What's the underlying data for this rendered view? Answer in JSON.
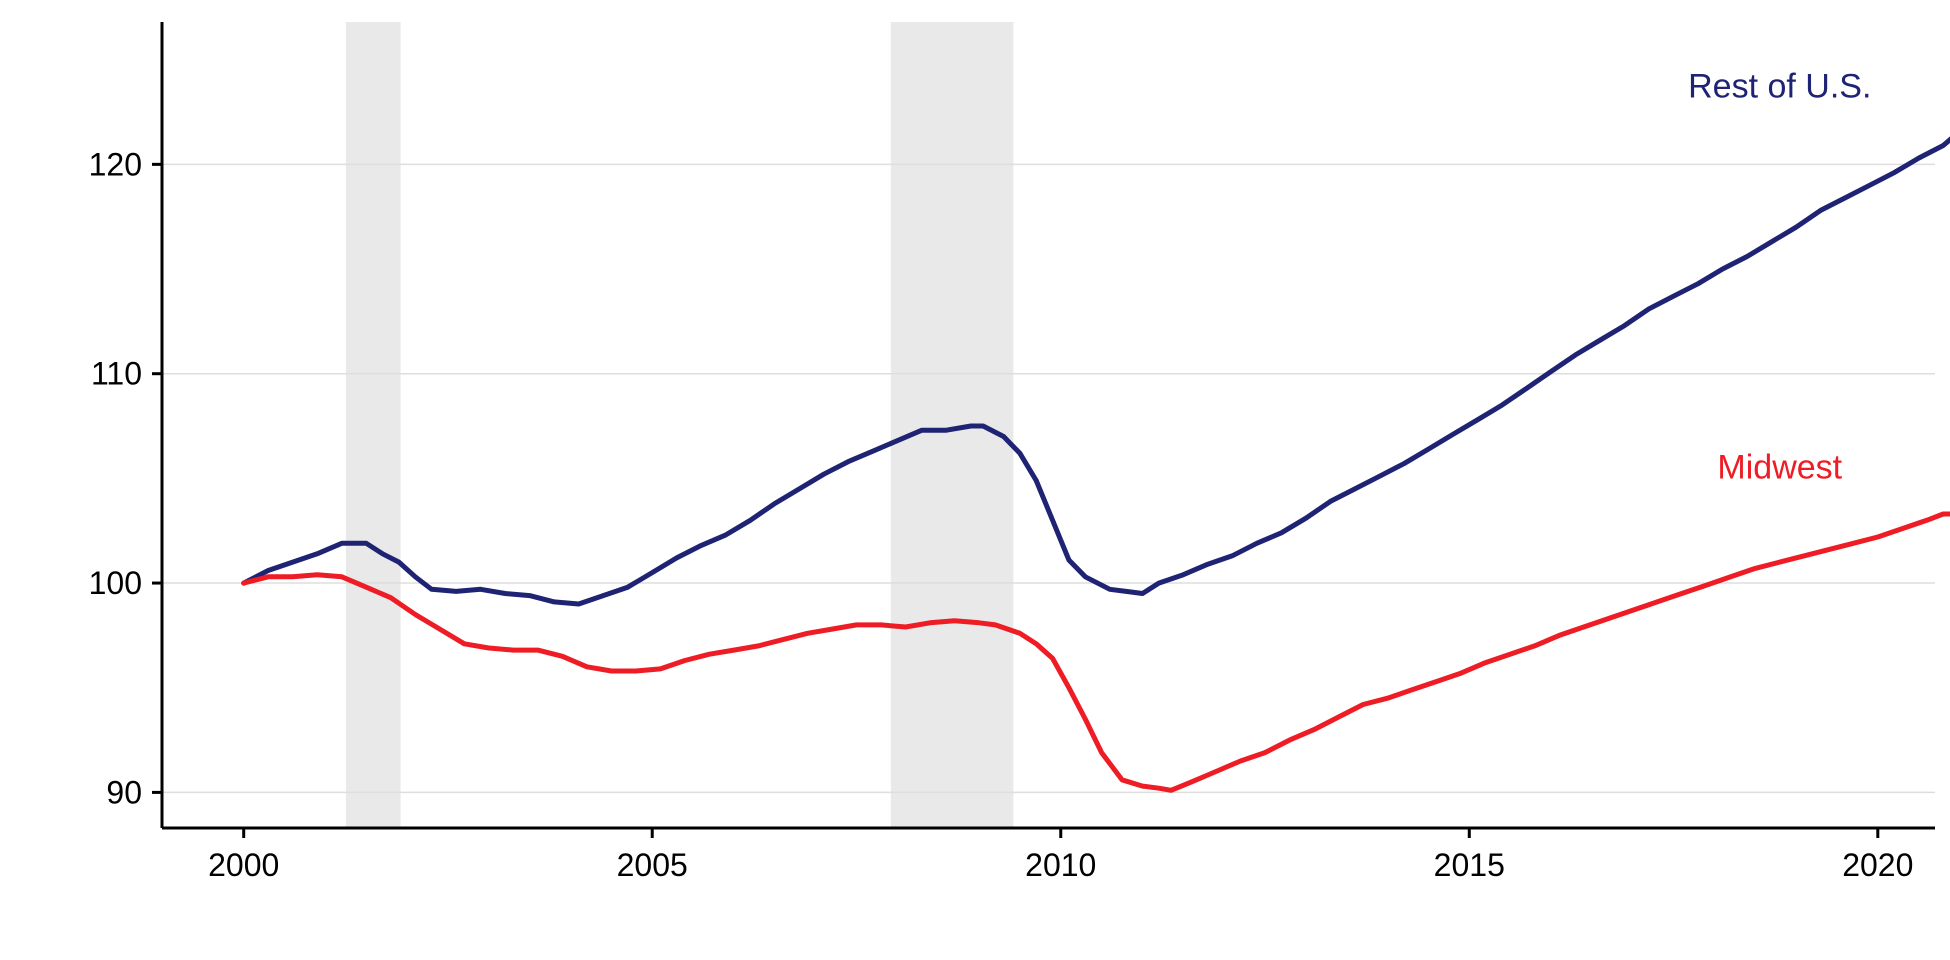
{
  "chart_data": {
    "type": "line",
    "title": "",
    "xlabel": "",
    "ylabel": "",
    "xlim": [
      1999.0,
      2020.7
    ],
    "ylim": [
      88.3,
      126.8
    ],
    "grid": "horizontal",
    "x_ticks": [
      {
        "value": 2000,
        "label": "2000"
      },
      {
        "value": 2005,
        "label": "2005"
      },
      {
        "value": 2010,
        "label": "2010"
      },
      {
        "value": 2015,
        "label": "2015"
      },
      {
        "value": 2020,
        "label": "2020"
      }
    ],
    "y_ticks": [
      {
        "value": 90,
        "label": "90"
      },
      {
        "value": 100,
        "label": "100"
      },
      {
        "value": 110,
        "label": "110"
      },
      {
        "value": 120,
        "label": "120"
      }
    ],
    "shaded_periods": [
      {
        "start": 2001.25,
        "end": 2001.92
      },
      {
        "start": 2007.92,
        "end": 2009.42
      }
    ],
    "series": [
      {
        "name": "Rest of U.S.",
        "color": "#1f2373",
        "label_anchor": {
          "x": 2018.8,
          "y": 123.2
        },
        "points": [
          [
            2000.0,
            100.0
          ],
          [
            2000.3,
            100.6
          ],
          [
            2000.6,
            101.0
          ],
          [
            2000.9,
            101.4
          ],
          [
            2001.2,
            101.9
          ],
          [
            2001.5,
            101.9
          ],
          [
            2001.7,
            101.4
          ],
          [
            2001.9,
            101.0
          ],
          [
            2002.1,
            100.3
          ],
          [
            2002.3,
            99.7
          ],
          [
            2002.6,
            99.6
          ],
          [
            2002.9,
            99.7
          ],
          [
            2003.2,
            99.5
          ],
          [
            2003.5,
            99.4
          ],
          [
            2003.8,
            99.1
          ],
          [
            2004.1,
            99.0
          ],
          [
            2004.4,
            99.4
          ],
          [
            2004.7,
            99.8
          ],
          [
            2005.0,
            100.5
          ],
          [
            2005.3,
            101.2
          ],
          [
            2005.6,
            101.8
          ],
          [
            2005.9,
            102.3
          ],
          [
            2006.2,
            103.0
          ],
          [
            2006.5,
            103.8
          ],
          [
            2006.8,
            104.5
          ],
          [
            2007.1,
            105.2
          ],
          [
            2007.4,
            105.8
          ],
          [
            2007.7,
            106.3
          ],
          [
            2008.0,
            106.8
          ],
          [
            2008.3,
            107.3
          ],
          [
            2008.6,
            107.3
          ],
          [
            2008.9,
            107.5
          ],
          [
            2009.05,
            107.5
          ],
          [
            2009.3,
            107.0
          ],
          [
            2009.5,
            106.2
          ],
          [
            2009.7,
            104.9
          ],
          [
            2009.9,
            103.0
          ],
          [
            2010.1,
            101.1
          ],
          [
            2010.3,
            100.3
          ],
          [
            2010.6,
            99.7
          ],
          [
            2010.8,
            99.6
          ],
          [
            2011.0,
            99.5
          ],
          [
            2011.2,
            100.0
          ],
          [
            2011.5,
            100.4
          ],
          [
            2011.8,
            100.9
          ],
          [
            2012.1,
            101.3
          ],
          [
            2012.4,
            101.9
          ],
          [
            2012.7,
            102.4
          ],
          [
            2013.0,
            103.1
          ],
          [
            2013.3,
            103.9
          ],
          [
            2013.6,
            104.5
          ],
          [
            2013.9,
            105.1
          ],
          [
            2014.2,
            105.7
          ],
          [
            2014.5,
            106.4
          ],
          [
            2014.8,
            107.1
          ],
          [
            2015.1,
            107.8
          ],
          [
            2015.4,
            108.5
          ],
          [
            2015.7,
            109.3
          ],
          [
            2016.0,
            110.1
          ],
          [
            2016.3,
            110.9
          ],
          [
            2016.6,
            111.6
          ],
          [
            2016.9,
            112.3
          ],
          [
            2017.2,
            113.1
          ],
          [
            2017.5,
            113.7
          ],
          [
            2017.8,
            114.3
          ],
          [
            2018.1,
            115.0
          ],
          [
            2018.4,
            115.6
          ],
          [
            2018.7,
            116.3
          ],
          [
            2019.0,
            117.0
          ],
          [
            2019.3,
            117.8
          ],
          [
            2019.6,
            118.4
          ],
          [
            2019.9,
            119.0
          ],
          [
            2020.2,
            119.6
          ],
          [
            2020.5,
            120.3
          ],
          [
            2020.8,
            120.9
          ],
          [
            2020.95,
            121.4
          ]
        ]
      },
      {
        "name": "Midwest",
        "color": "#ee1c25",
        "label_anchor": {
          "x": 2018.8,
          "y": 105.0
        },
        "points": [
          [
            2000.0,
            100.0
          ],
          [
            2000.3,
            100.3
          ],
          [
            2000.6,
            100.3
          ],
          [
            2000.9,
            100.4
          ],
          [
            2001.2,
            100.3
          ],
          [
            2001.5,
            99.8
          ],
          [
            2001.8,
            99.3
          ],
          [
            2002.1,
            98.5
          ],
          [
            2002.4,
            97.8
          ],
          [
            2002.7,
            97.1
          ],
          [
            2003.0,
            96.9
          ],
          [
            2003.3,
            96.8
          ],
          [
            2003.6,
            96.8
          ],
          [
            2003.9,
            96.5
          ],
          [
            2004.2,
            96.0
          ],
          [
            2004.5,
            95.8
          ],
          [
            2004.8,
            95.8
          ],
          [
            2005.1,
            95.9
          ],
          [
            2005.4,
            96.3
          ],
          [
            2005.7,
            96.6
          ],
          [
            2006.0,
            96.8
          ],
          [
            2006.3,
            97.0
          ],
          [
            2006.6,
            97.3
          ],
          [
            2006.9,
            97.6
          ],
          [
            2007.2,
            97.8
          ],
          [
            2007.5,
            98.0
          ],
          [
            2007.8,
            98.0
          ],
          [
            2008.1,
            97.9
          ],
          [
            2008.4,
            98.1
          ],
          [
            2008.7,
            98.2
          ],
          [
            2009.0,
            98.1
          ],
          [
            2009.2,
            98.0
          ],
          [
            2009.5,
            97.6
          ],
          [
            2009.7,
            97.1
          ],
          [
            2009.9,
            96.4
          ],
          [
            2010.1,
            95.0
          ],
          [
            2010.3,
            93.5
          ],
          [
            2010.5,
            91.9
          ],
          [
            2010.75,
            90.6
          ],
          [
            2011.0,
            90.3
          ],
          [
            2011.2,
            90.2
          ],
          [
            2011.35,
            90.1
          ],
          [
            2011.6,
            90.5
          ],
          [
            2011.9,
            91.0
          ],
          [
            2012.2,
            91.5
          ],
          [
            2012.5,
            91.9
          ],
          [
            2012.8,
            92.5
          ],
          [
            2013.1,
            93.0
          ],
          [
            2013.4,
            93.6
          ],
          [
            2013.7,
            94.2
          ],
          [
            2014.0,
            94.5
          ],
          [
            2014.3,
            94.9
          ],
          [
            2014.6,
            95.3
          ],
          [
            2014.9,
            95.7
          ],
          [
            2015.2,
            96.2
          ],
          [
            2015.5,
            96.6
          ],
          [
            2015.8,
            97.0
          ],
          [
            2016.1,
            97.5
          ],
          [
            2016.4,
            97.9
          ],
          [
            2016.7,
            98.3
          ],
          [
            2017.0,
            98.7
          ],
          [
            2017.3,
            99.1
          ],
          [
            2017.6,
            99.5
          ],
          [
            2017.9,
            99.9
          ],
          [
            2018.2,
            100.3
          ],
          [
            2018.5,
            100.7
          ],
          [
            2018.8,
            101.0
          ],
          [
            2019.1,
            101.3
          ],
          [
            2019.4,
            101.6
          ],
          [
            2019.7,
            101.9
          ],
          [
            2020.0,
            102.2
          ],
          [
            2020.3,
            102.6
          ],
          [
            2020.6,
            103.0
          ],
          [
            2020.8,
            103.3
          ],
          [
            2020.95,
            103.3
          ]
        ]
      }
    ]
  }
}
